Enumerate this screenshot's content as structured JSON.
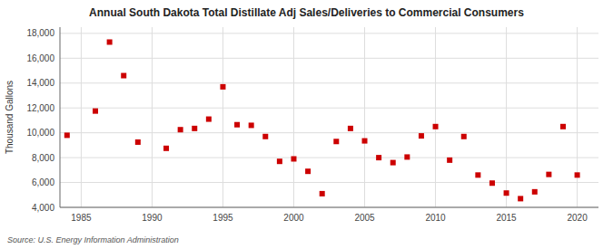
{
  "chart_data": {
    "type": "scatter",
    "title": "Annual South Dakota Total Distillate Adj Sales/Deliveries to Commercial Consumers",
    "y_label": "Thousand Gallons",
    "annotation": "Source: U.S. Energy Information Administration",
    "x": [
      1984,
      1986,
      1987,
      1988,
      1989,
      1991,
      1992,
      1993,
      1994,
      1995,
      1996,
      1997,
      1998,
      1999,
      2000,
      2001,
      2002,
      2003,
      2004,
      2005,
      2006,
      2007,
      2008,
      2009,
      2010,
      2011,
      2012,
      2013,
      2014,
      2015,
      2016,
      2017,
      2018,
      2019,
      2020
    ],
    "values": [
      9800,
      11750,
      17300,
      14600,
      9250,
      8750,
      10250,
      10350,
      11100,
      13700,
      10650,
      10600,
      9700,
      7700,
      7900,
      6900,
      5100,
      9300,
      10350,
      9350,
      8000,
      7600,
      8050,
      9750,
      10500,
      7800,
      9700,
      6600,
      5950,
      5150,
      4700,
      5250,
      6650,
      10500,
      6600
    ],
    "color": "#cc0000",
    "marker": "square",
    "xlim": [
      1983.5,
      2021.5
    ],
    "ylim": [
      4000,
      18500
    ],
    "xticks": [
      1985,
      1990,
      1995,
      2000,
      2005,
      2010,
      2015,
      2020
    ],
    "yticks": [
      {
        "value": 4000,
        "label": "4,000"
      },
      {
        "value": 6000,
        "label": "6,000"
      },
      {
        "value": 8000,
        "label": "8,000"
      },
      {
        "value": 10000,
        "label": "10,000"
      },
      {
        "value": 12000,
        "label": "12,000"
      },
      {
        "value": 14000,
        "label": "14,000"
      },
      {
        "value": 16000,
        "label": "16,000"
      },
      {
        "value": 18000,
        "label": "18,000"
      }
    ],
    "grid": true
  }
}
